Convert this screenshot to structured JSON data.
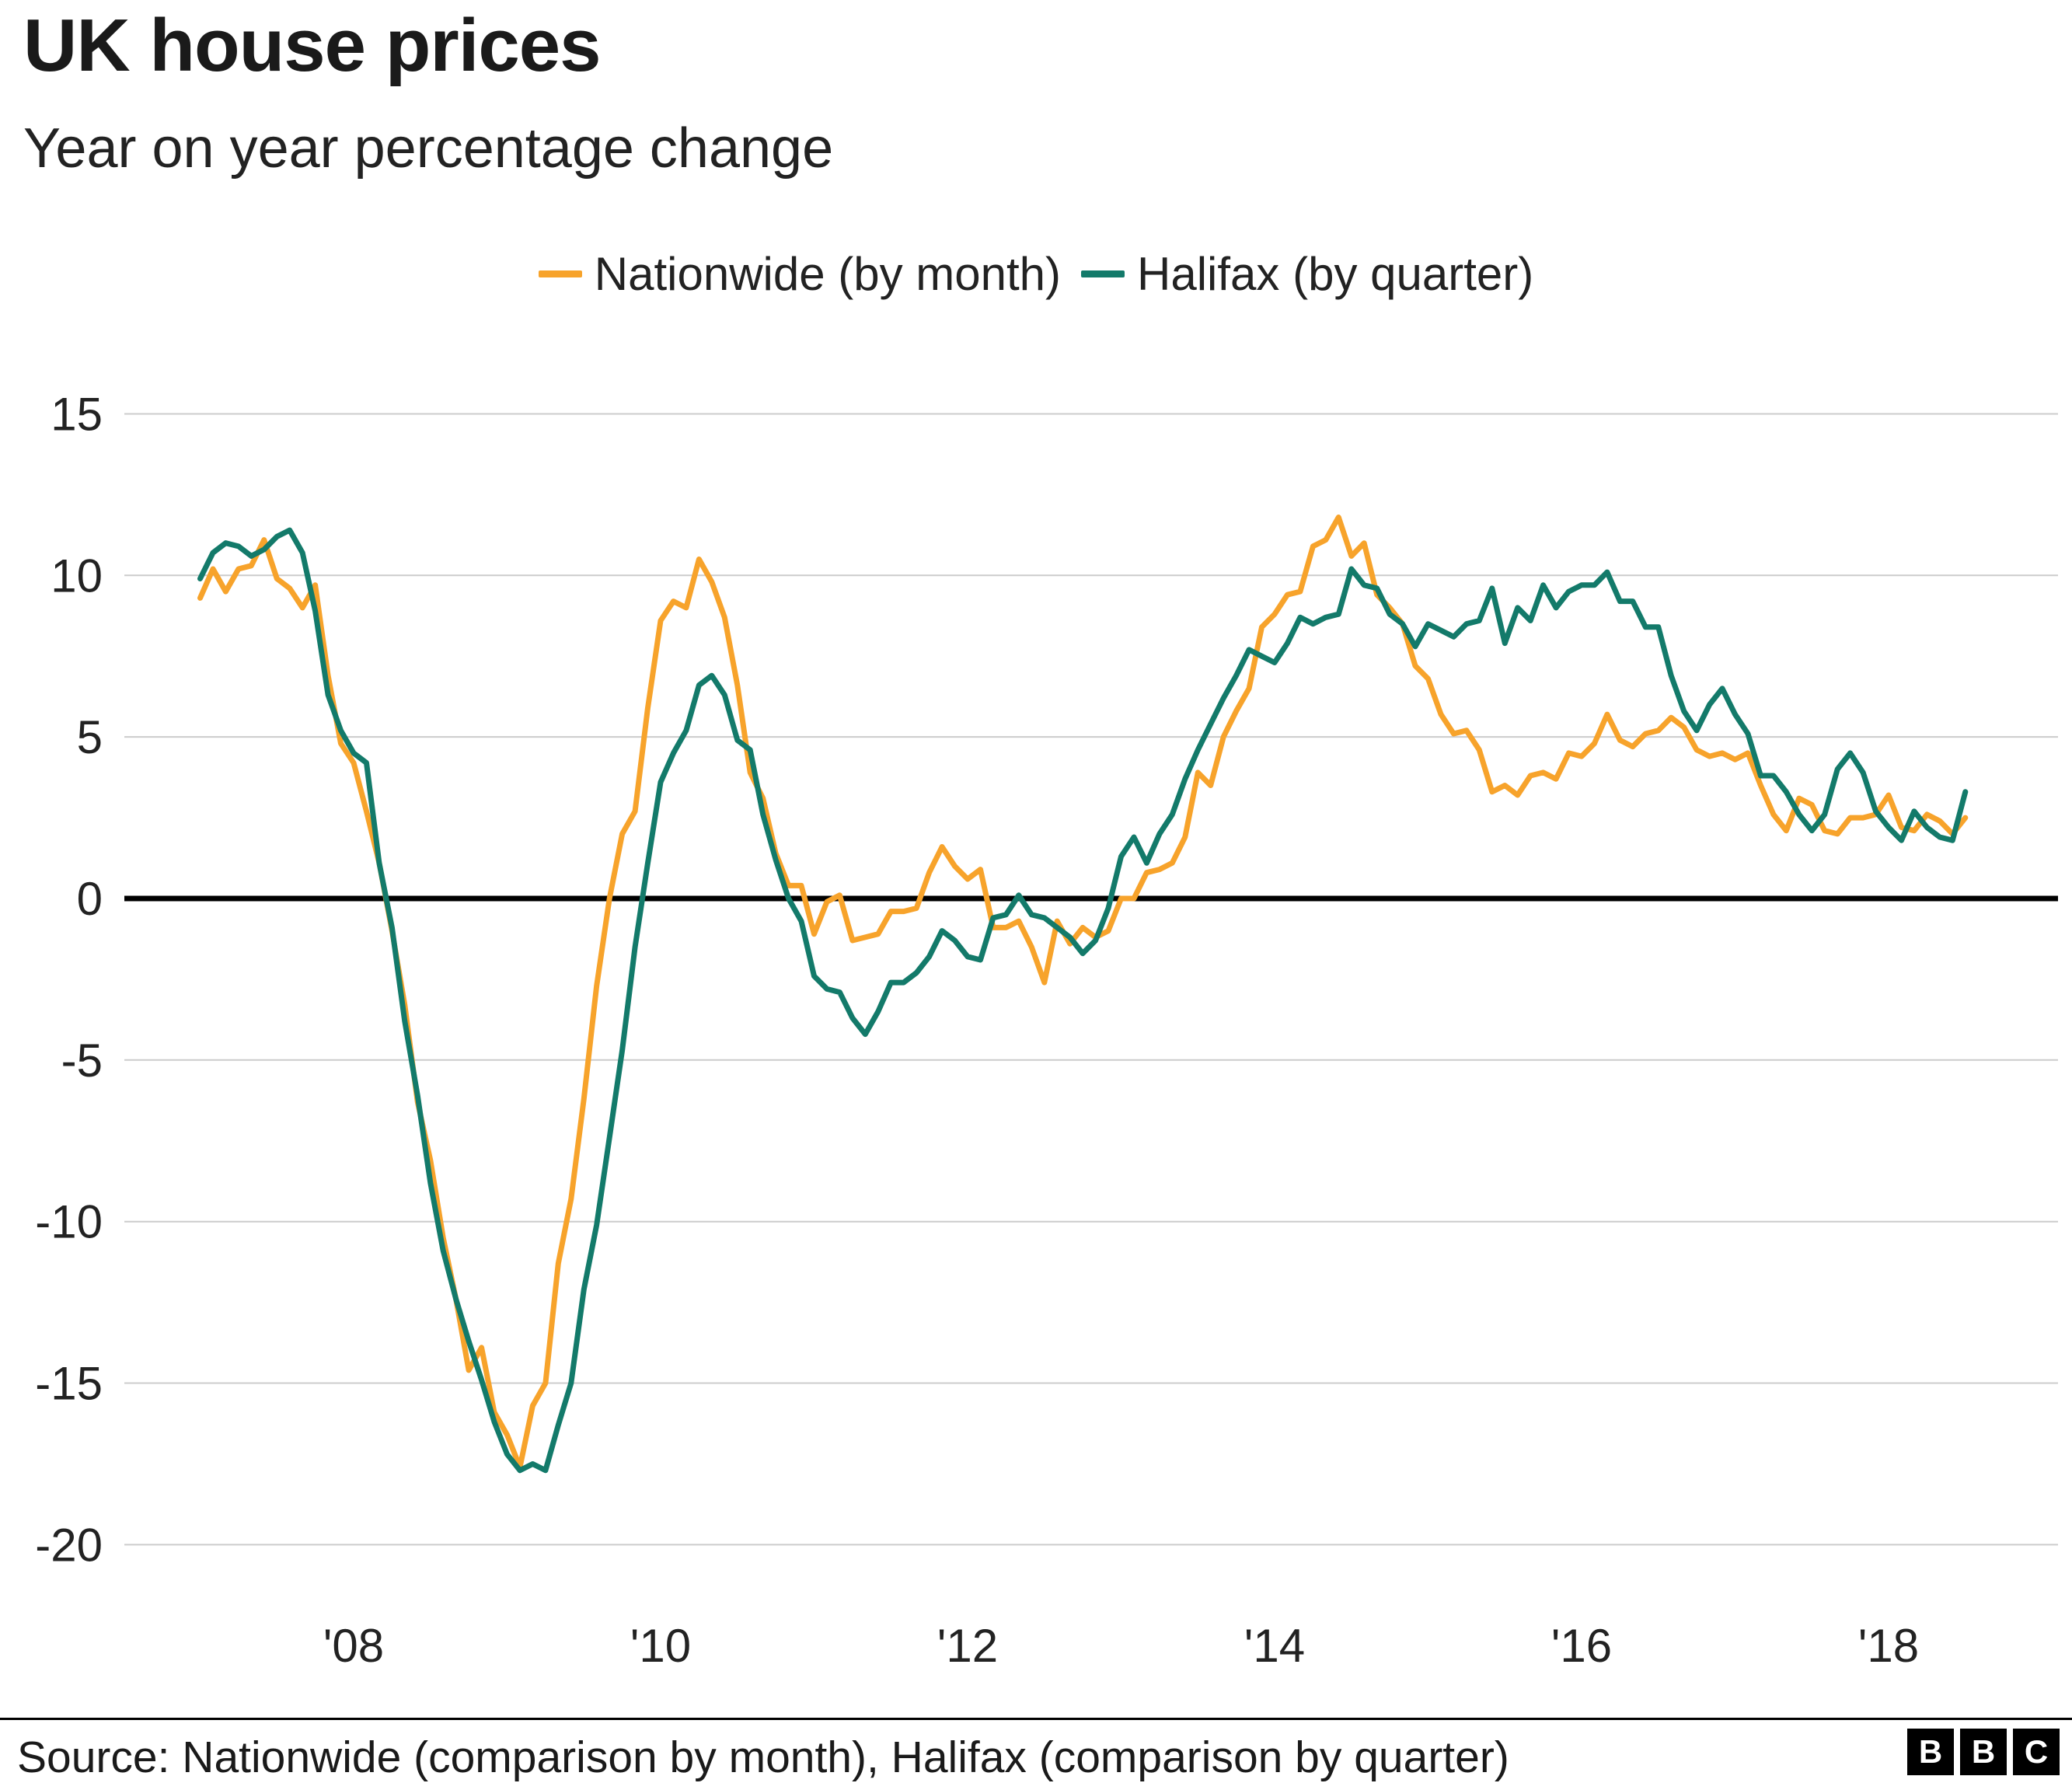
{
  "header": {
    "title": "UK house prices",
    "subtitle": "Year on year percentage change"
  },
  "legend": [
    {
      "label": "Nationwide (by month)",
      "color": "#f7a32b"
    },
    {
      "label": "Halifax (by quarter)",
      "color": "#137a6a"
    }
  ],
  "footer": {
    "source": "Source: Nationwide (comparison by month), Halifax (comparison by quarter)",
    "logo": [
      "B",
      "B",
      "C"
    ]
  },
  "chart_data": {
    "type": "line",
    "title": "UK house prices",
    "subtitle": "Year on year percentage change",
    "xlabel": "",
    "ylabel": "Year on year percentage change",
    "xlim": [
      2006.9,
      2018.8
    ],
    "ylim": [
      -20,
      15
    ],
    "grid": true,
    "legend_position": "top",
    "zero_line": true,
    "yticks": [
      15,
      10,
      5,
      0,
      -5,
      -10,
      -15,
      -20
    ],
    "xticks": [
      {
        "value": 2008,
        "label": "'08"
      },
      {
        "value": 2010,
        "label": "'10"
      },
      {
        "value": 2012,
        "label": "'12"
      },
      {
        "value": 2014,
        "label": "'14"
      },
      {
        "value": 2016,
        "label": "'16"
      },
      {
        "value": 2018,
        "label": "'18"
      }
    ],
    "x_unit": "decimal_year",
    "series": [
      {
        "name": "Nationwide (by month)",
        "color": "#f7a32b",
        "x_start": 2007.0,
        "points_per_year": 12,
        "values": [
          9.3,
          10.2,
          9.5,
          10.2,
          10.3,
          11.1,
          9.9,
          9.6,
          9.0,
          9.7,
          6.9,
          4.8,
          4.2,
          2.7,
          1.1,
          -1.0,
          -3.3,
          -6.3,
          -8.1,
          -10.5,
          -12.4,
          -14.6,
          -13.9,
          -15.9,
          -16.6,
          -17.6,
          -15.7,
          -15.0,
          -11.3,
          -9.3,
          -6.2,
          -2.7,
          0.0,
          2.0,
          2.7,
          5.9,
          8.6,
          9.2,
          9.0,
          10.5,
          9.8,
          8.7,
          6.6,
          3.9,
          3.1,
          1.4,
          0.4,
          0.4,
          -1.1,
          -0.1,
          0.1,
          -1.3,
          -1.2,
          -1.1,
          -0.4,
          -0.4,
          -0.3,
          0.8,
          1.6,
          1.0,
          0.6,
          0.9,
          -0.9,
          -0.9,
          -0.7,
          -1.5,
          -2.6,
          -0.7,
          -1.4,
          -0.9,
          -1.2,
          -1.0,
          0.0,
          0.0,
          0.8,
          0.9,
          1.1,
          1.9,
          3.9,
          3.5,
          5.0,
          5.8,
          6.5,
          8.4,
          8.8,
          9.4,
          9.5,
          10.9,
          11.1,
          11.8,
          10.6,
          11.0,
          9.4,
          9.0,
          8.5,
          7.2,
          6.8,
          5.7,
          5.1,
          5.2,
          4.6,
          3.3,
          3.5,
          3.2,
          3.8,
          3.9,
          3.7,
          4.5,
          4.4,
          4.8,
          5.7,
          4.9,
          4.7,
          5.1,
          5.2,
          5.6,
          5.3,
          4.6,
          4.4,
          4.5,
          4.3,
          4.5,
          3.5,
          2.6,
          2.1,
          3.1,
          2.9,
          2.1,
          2.0,
          2.5,
          2.5,
          2.6,
          3.2,
          2.2,
          2.1,
          2.6,
          2.4,
          2.0,
          2.5
        ]
      },
      {
        "name": "Halifax (by quarter)",
        "color": "#137a6a",
        "x_start": 2007.0,
        "points_per_year": 12,
        "values": [
          9.9,
          10.7,
          11.0,
          10.9,
          10.6,
          10.8,
          11.2,
          11.4,
          10.7,
          8.9,
          6.3,
          5.2,
          4.5,
          4.2,
          1.1,
          -0.9,
          -3.8,
          -6.1,
          -8.8,
          -10.9,
          -12.4,
          -13.7,
          -14.9,
          -16.2,
          -17.2,
          -17.7,
          -17.5,
          -17.7,
          -16.3,
          -15.0,
          -12.1,
          -10.1,
          -7.4,
          -4.7,
          -1.5,
          1.1,
          3.6,
          4.5,
          5.2,
          6.6,
          6.9,
          6.3,
          4.9,
          4.6,
          2.6,
          1.2,
          0.0,
          -0.7,
          -2.4,
          -2.8,
          -2.9,
          -3.7,
          -4.2,
          -3.5,
          -2.6,
          -2.6,
          -2.3,
          -1.8,
          -1.0,
          -1.3,
          -1.8,
          -1.9,
          -0.6,
          -0.5,
          0.1,
          -0.5,
          -0.6,
          -0.9,
          -1.2,
          -1.7,
          -1.3,
          -0.3,
          1.3,
          1.9,
          1.1,
          2.0,
          2.6,
          3.7,
          4.6,
          5.4,
          6.2,
          6.9,
          7.7,
          7.5,
          7.3,
          7.9,
          8.7,
          8.5,
          8.7,
          8.8,
          10.2,
          9.7,
          9.6,
          8.8,
          8.5,
          7.8,
          8.5,
          8.3,
          8.1,
          8.5,
          8.6,
          9.6,
          7.9,
          9.0,
          8.6,
          9.7,
          9.0,
          9.5,
          9.7,
          9.7,
          10.1,
          9.2,
          9.2,
          8.4,
          8.4,
          6.9,
          5.8,
          5.2,
          6.0,
          6.5,
          5.7,
          5.1,
          3.8,
          3.8,
          3.3,
          2.6,
          2.1,
          2.6,
          4.0,
          4.5,
          3.9,
          2.7,
          2.2,
          1.8,
          2.7,
          2.2,
          1.9,
          1.8,
          3.3
        ]
      }
    ]
  }
}
